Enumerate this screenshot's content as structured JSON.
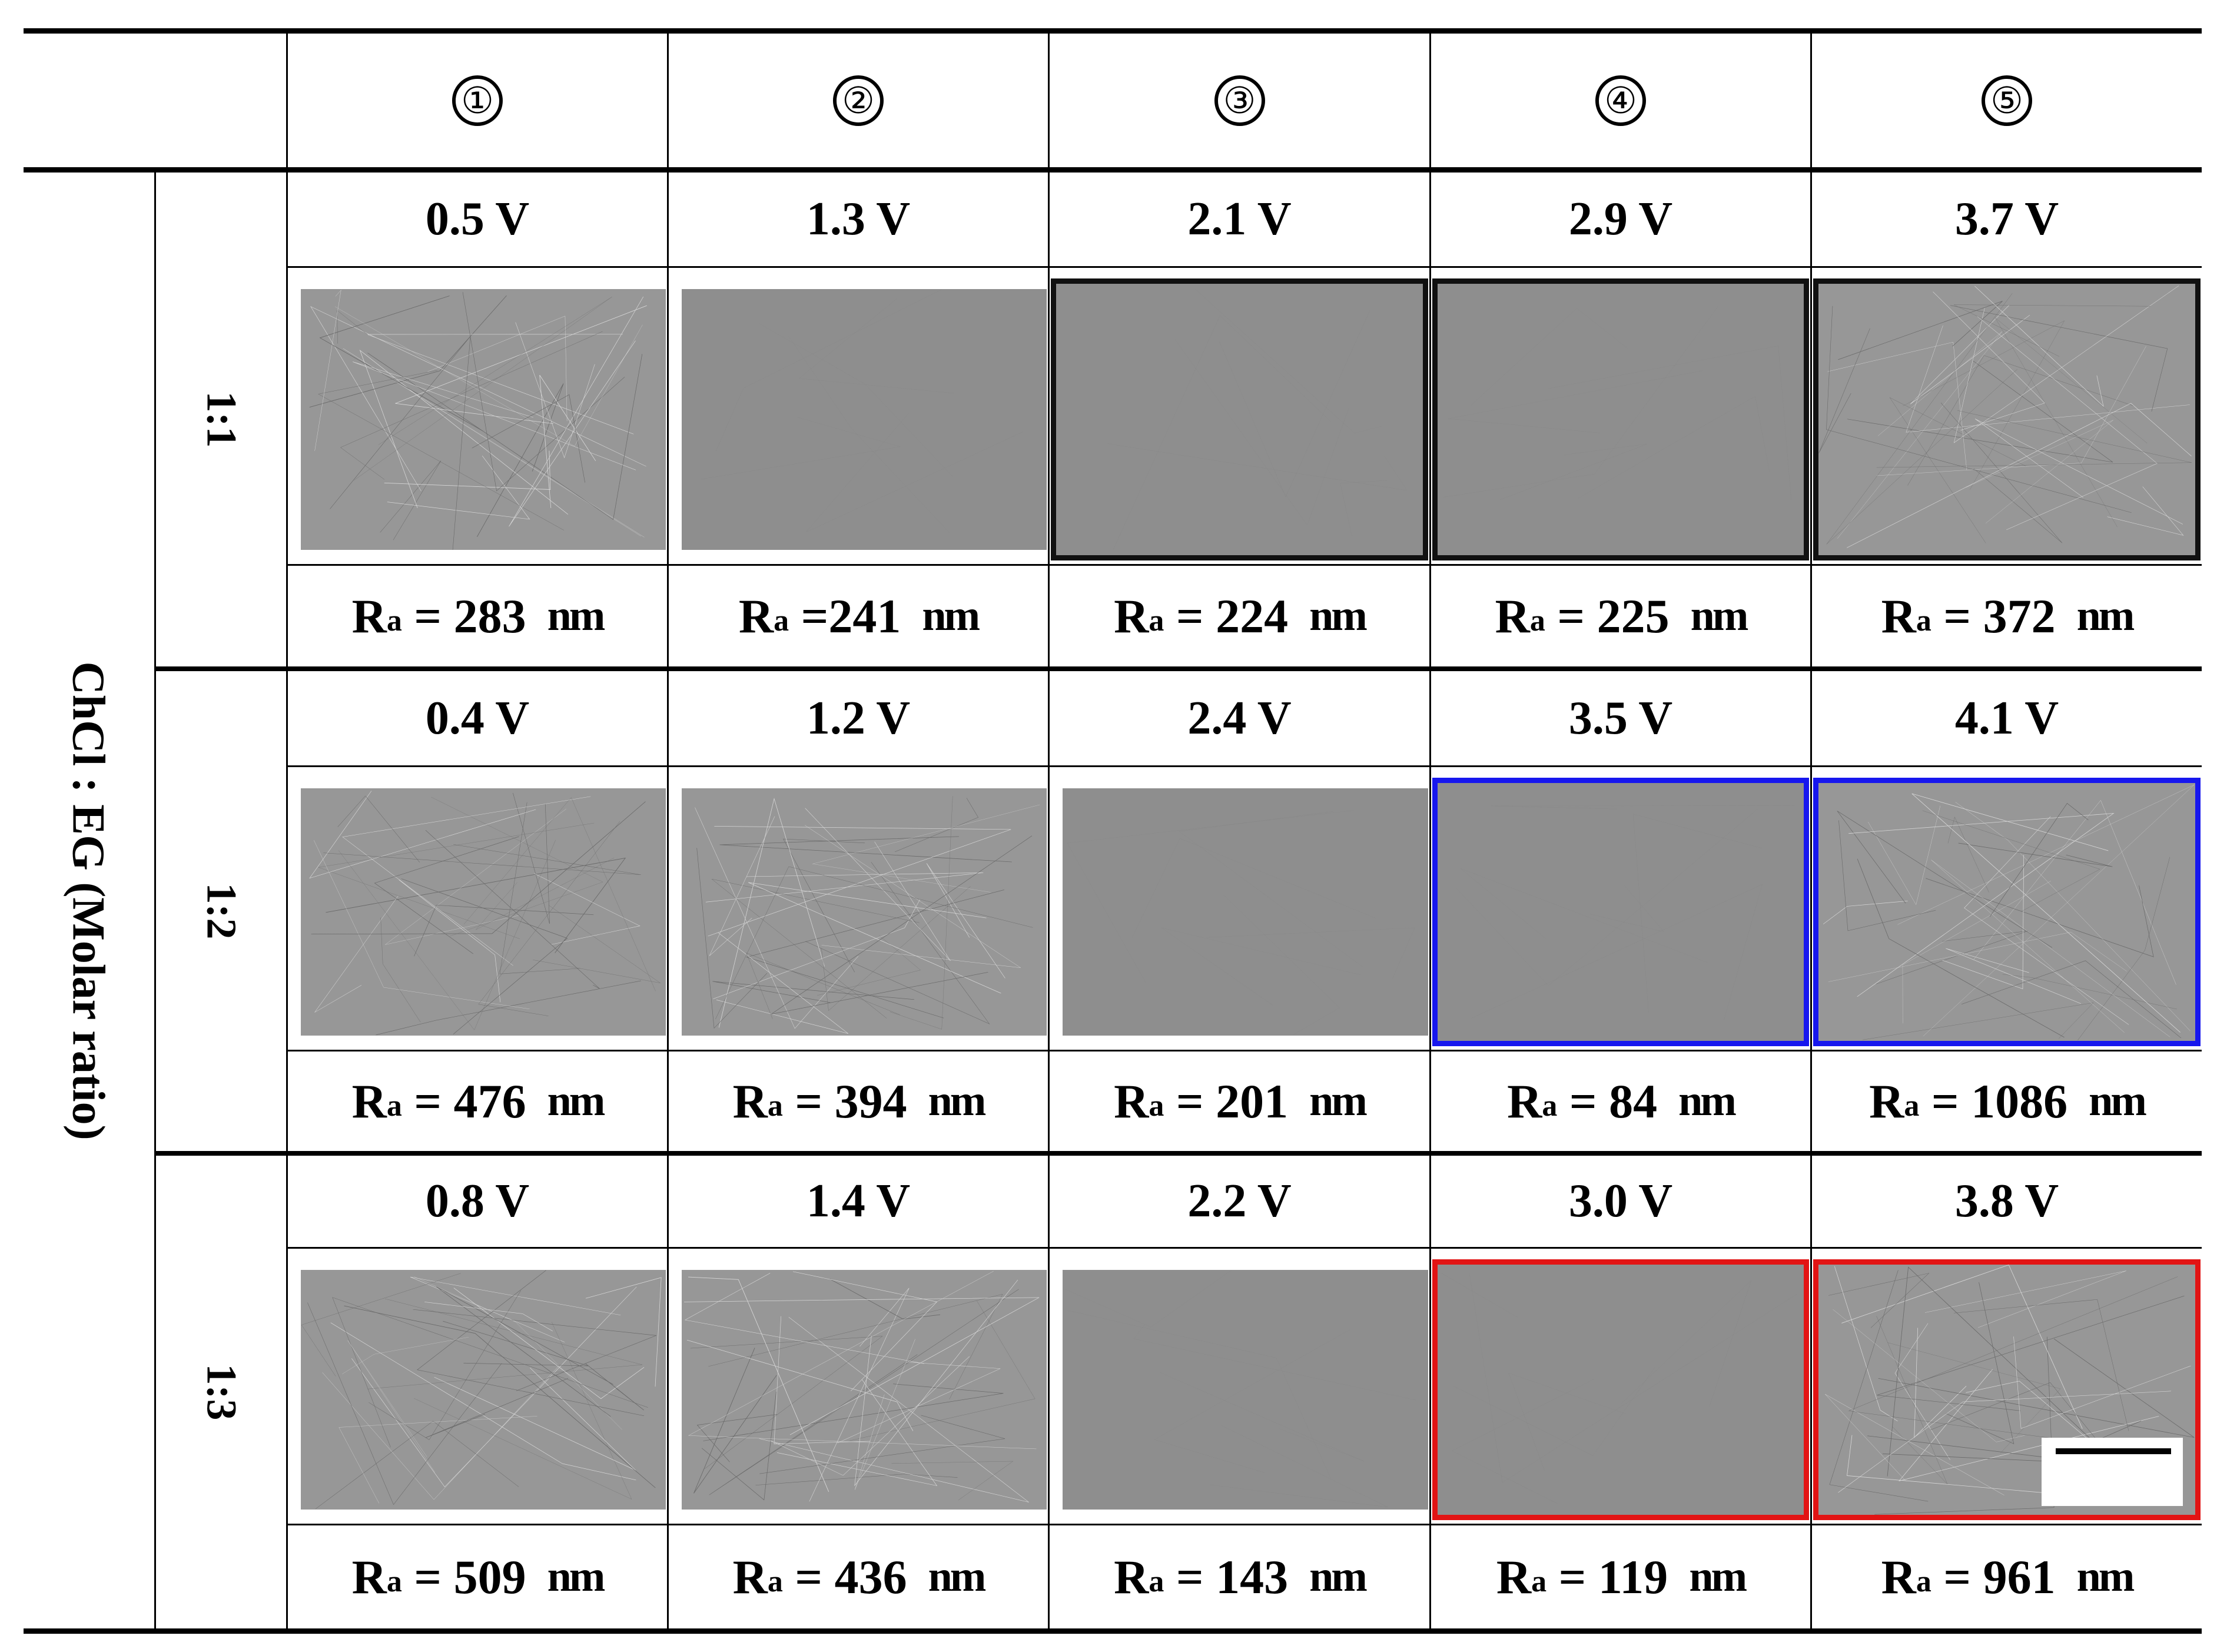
{
  "header": {
    "columns": [
      "①",
      "②",
      "③",
      "④",
      "⑤"
    ]
  },
  "row_axis_label": "ChCl : EG (Molar ratio)",
  "groups": [
    {
      "ratio": "1:1",
      "voltages": [
        "0.5 V",
        "1.3 V",
        "2.1 V",
        "2.9 V",
        "3.7 V"
      ],
      "ra_values": [
        "283",
        "241",
        "224",
        "225",
        "372"
      ],
      "ra_separators": [
        " = ",
        " =",
        " = ",
        " = ",
        " = "
      ],
      "highlight_color": "#111111",
      "highlighted_columns": [
        2,
        3,
        4
      ]
    },
    {
      "ratio": "1:2",
      "voltages": [
        "0.4 V",
        "1.2 V",
        "2.4 V",
        "3.5 V",
        "4.1 V"
      ],
      "ra_values": [
        "476",
        "394",
        "201",
        "84",
        "1086"
      ],
      "ra_separators": [
        " = ",
        " = ",
        " = ",
        " = ",
        " = "
      ],
      "highlight_color": "#1717ee",
      "highlighted_columns": [
        3,
        4
      ]
    },
    {
      "ratio": "1:3",
      "voltages": [
        "0.8 V",
        "1.4 V",
        "2.2 V",
        "3.0 V",
        "3.8 V"
      ],
      "ra_values": [
        "509",
        "436",
        "143",
        "119",
        "961"
      ],
      "ra_separators": [
        " = ",
        " = ",
        " = ",
        " = ",
        " = "
      ],
      "highlight_color": "#e21414",
      "highlighted_columns": [
        3,
        4
      ]
    }
  ],
  "ra_symbol": "R",
  "ra_subscript": "a",
  "ra_unit": "nm"
}
